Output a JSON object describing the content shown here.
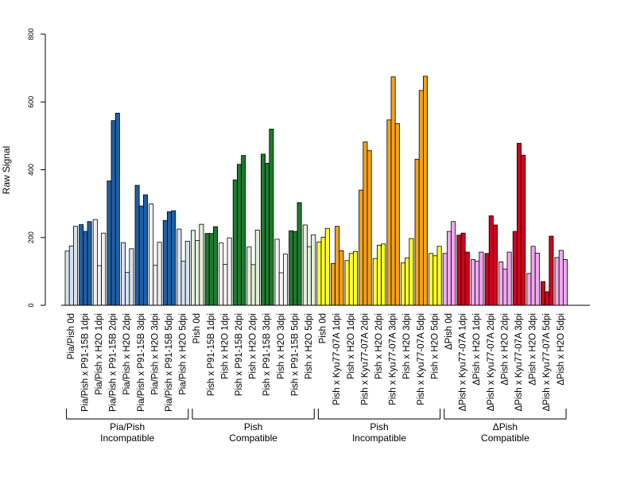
{
  "chart_data": {
    "type": "bar",
    "title": "",
    "xlabel": "",
    "ylabel": "Raw Signal",
    "ylim": [
      0,
      800
    ],
    "yticks": [
      0,
      200,
      400,
      600,
      800
    ],
    "grid": false,
    "legend": "none",
    "categories": [
      "Pia/Pish 0d",
      "Pia/Pish x P91-15B 1dpi",
      "Pia/Pish x H2O 1dpi",
      "Pia/Pish x P91-15B 2dpi",
      "Pia/Pish x H2O 2dpi",
      "Pia/Pish x P91-15B 3dpi",
      "Pia/Pish x H2O 3dpi",
      "Pia/Pish x P91-15B 5dpi",
      "Pia/Pish x H2O 5dpi",
      "Pish 0d",
      "Pish x P91-15B 1dpi",
      "Pish x H2O 1dpi",
      "Pish x P91-15B 2dpi",
      "Pish x H2O 2dpi",
      "Pish x P91-15B 3dpi",
      "Pish x H2O 3dpi",
      "Pish x P91-15B 5dpi",
      "Pish x H2O 5dpi",
      "Pish 0d",
      "Pish x Kyu77-07A 1dpi",
      "Pish x H2O 1dpi",
      "Pish x Kyu77-07A 2dpi",
      "Pish x H2O 2dpi",
      "Pish x Kyu77-07A 3dpi",
      "Pish x H2O 3dpi",
      "Pish x Kyu77-07A 5dpi",
      "Pish x H2O 5dpi",
      "ΔPish 0d",
      "ΔPish x Kyu77-07A 1dpi",
      "ΔPish x H2O 1dpi",
      "ΔPish x Kyu77-07A 2dpi",
      "ΔPish x H2O 2dpi",
      "ΔPish x Kyu77-07A 3dpi",
      "ΔPish x H2O 3dpi",
      "ΔPish x Kyu77-07A 5dpi",
      "ΔPish x H2O 5dpi"
    ],
    "values": [
      [
        160,
        175,
        233
      ],
      [
        238,
        218,
        247
      ],
      [
        253,
        117,
        213
      ],
      [
        367,
        545,
        567
      ],
      [
        185,
        97,
        167
      ],
      [
        354,
        293,
        326
      ],
      [
        299,
        118,
        186
      ],
      [
        250,
        276,
        279
      ],
      [
        225,
        130,
        189
      ],
      [
        221,
        191,
        239
      ],
      [
        212,
        212,
        232
      ],
      [
        184,
        121,
        199
      ],
      [
        370,
        416,
        442
      ],
      [
        172,
        120,
        222
      ],
      [
        446,
        419,
        520
      ],
      [
        195,
        96,
        151
      ],
      [
        220,
        218,
        303
      ],
      [
        237,
        173,
        208
      ],
      [
        187,
        201,
        227
      ],
      [
        123,
        233,
        161
      ],
      [
        132,
        153,
        159
      ],
      [
        340,
        482,
        457
      ],
      [
        138,
        177,
        181
      ],
      [
        547,
        674,
        536
      ],
      [
        125,
        140,
        197
      ],
      [
        431,
        634,
        676
      ],
      [
        153,
        146,
        174
      ],
      [
        153,
        218,
        247
      ],
      [
        207,
        213,
        157
      ],
      [
        135,
        130,
        157
      ],
      [
        153,
        264,
        237
      ],
      [
        128,
        107,
        157
      ],
      [
        218,
        478,
        443
      ],
      [
        94,
        174,
        154
      ],
      [
        70,
        40,
        204
      ],
      [
        141,
        162,
        135
      ]
    ],
    "bar_colors": [
      "#d6e2f0",
      "#1f5fa6",
      "#eeeeee",
      "#1f5fa6",
      "#d6e2f0",
      "#1f5fa6",
      "#eeeeee",
      "#1f5fa6",
      "#d6e2f0",
      "#e3eed9",
      "#1f7a2e",
      "#f3f3f3",
      "#1f7a2e",
      "#e3eed9",
      "#1f7a2e",
      "#f3f3f3",
      "#1f7a2e",
      "#e3eed9",
      "#fdfd33",
      "#f5a11b",
      "#fdfd33",
      "#f5a11b",
      "#fdfd33",
      "#f5a11b",
      "#fdfd33",
      "#f5a11b",
      "#fdfd33",
      "#f1a7ef",
      "#d0041d",
      "#f1a7ef",
      "#d0041d",
      "#f1a7ef",
      "#d0041d",
      "#f1a7ef",
      "#d0041d",
      "#f1a7ef"
    ],
    "groups": [
      {
        "line1": "Pia/Pish",
        "line2": "Incompatible",
        "from": 0,
        "to": 8
      },
      {
        "line1": "Pish",
        "line2": "Compatible",
        "from": 9,
        "to": 17
      },
      {
        "line1": "Pish",
        "line2": "Incompatible",
        "from": 18,
        "to": 26
      },
      {
        "line1": "ΔPish",
        "line2": "Compatible",
        "from": 27,
        "to": 35
      }
    ]
  }
}
